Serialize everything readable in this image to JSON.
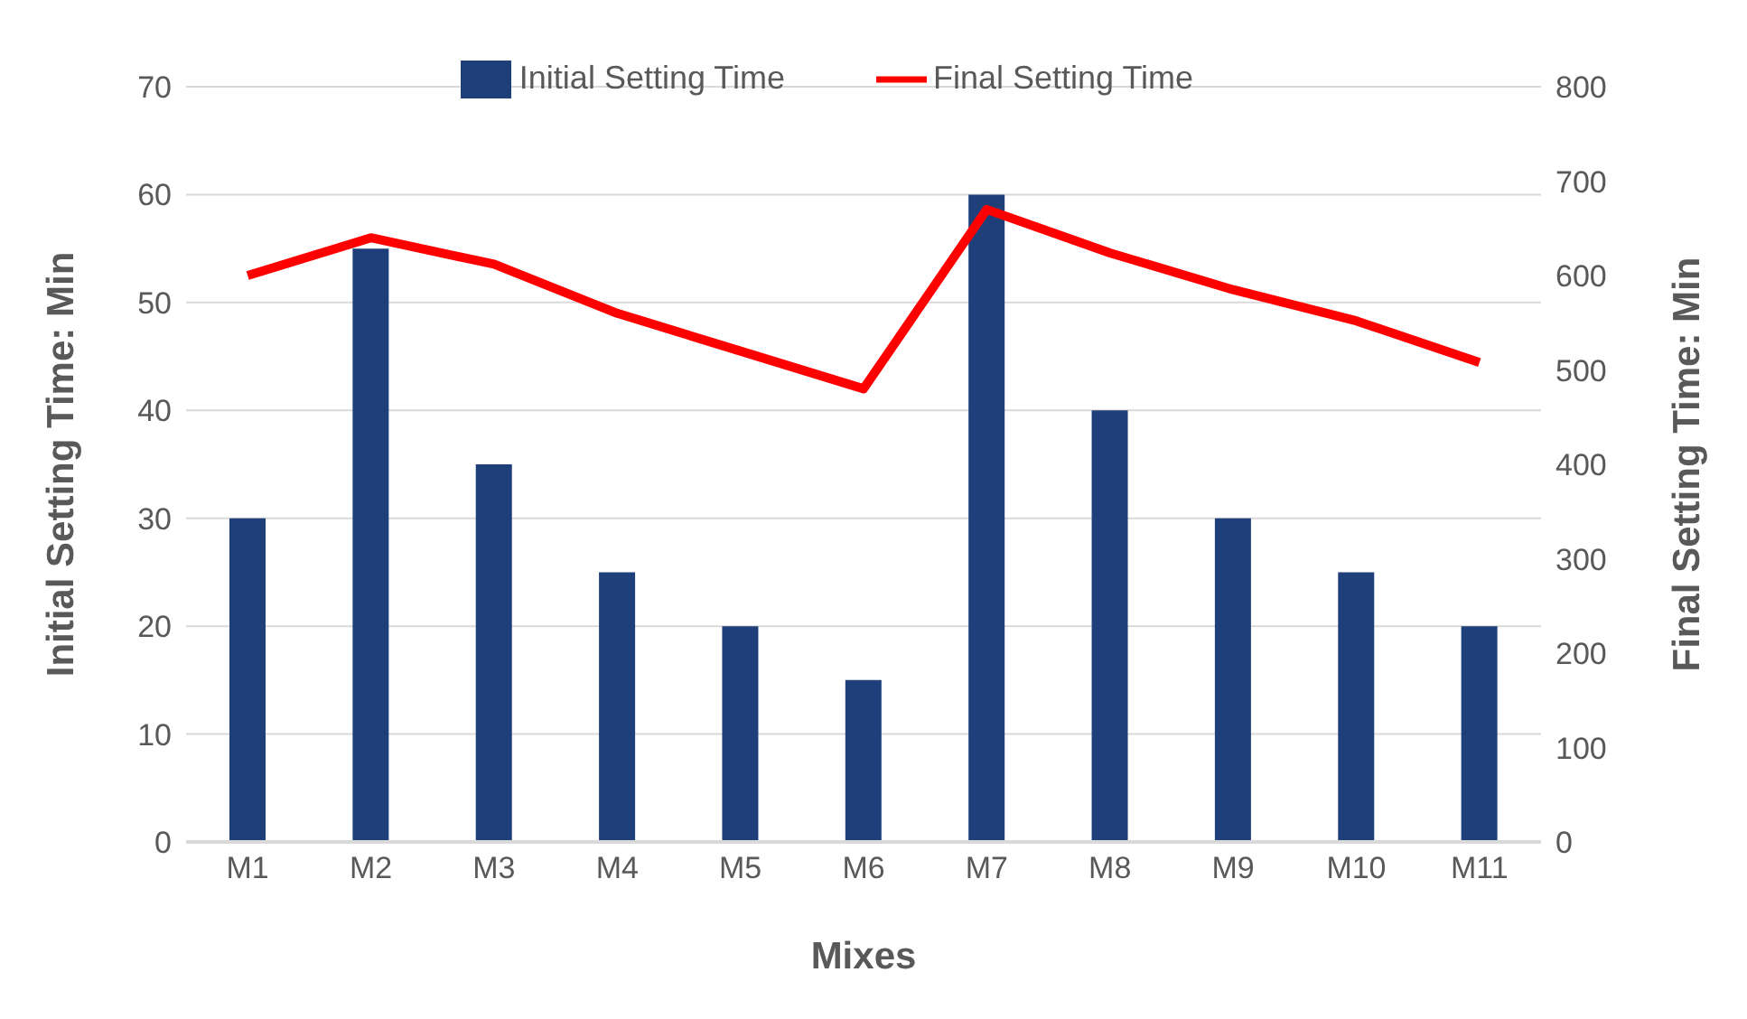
{
  "chart_data": {
    "type": "bar",
    "xlabel": "Mixes",
    "ylabel": "Initial Setting Time: Min",
    "y2label": "Final Setting Time: Min",
    "categories": [
      "M1",
      "M2",
      "M3",
      "M4",
      "M5",
      "M6",
      "M7",
      "M8",
      "M9",
      "M10",
      "M11"
    ],
    "series": [
      {
        "name": "Initial Setting Time",
        "color": "#1f3f7a",
        "values": [
          30,
          55,
          35,
          25,
          20,
          15,
          60,
          40,
          30,
          25,
          20
        ]
      },
      {
        "name": "Final Setting Time",
        "type": "line",
        "axis": "y2",
        "color": "#ff0000",
        "values": [
          600,
          640,
          612,
          560,
          520,
          480,
          670,
          624,
          585,
          552,
          508
        ]
      }
    ],
    "ylim": [
      0,
      70
    ],
    "yticks": [
      0,
      10,
      20,
      30,
      40,
      50,
      60,
      70
    ],
    "y2lim": [
      0,
      800
    ],
    "y2ticks": [
      0,
      100,
      200,
      300,
      400,
      500,
      600,
      700,
      800
    ],
    "grid": "y",
    "legend": "top"
  }
}
